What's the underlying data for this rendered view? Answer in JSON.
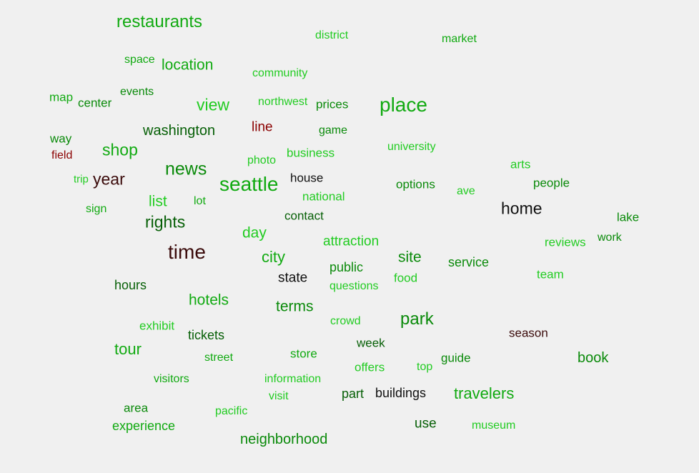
{
  "colors": {
    "background": "#f0f0f0",
    "bright_green": "#22cc22",
    "green": "#11aa11",
    "mid_green": "#0a8a0a",
    "dark_green": "#065f06",
    "dark_red": "#8b0000",
    "dark_brown": "#3a0a0a",
    "black": "#101010"
  },
  "words": [
    {
      "text": "restaurants",
      "color": "#11aa11"
    },
    {
      "text": "district",
      "color": "#22cc22"
    },
    {
      "text": "market",
      "color": "#11aa11"
    },
    {
      "text": "space",
      "color": "#11aa11"
    },
    {
      "text": "location",
      "color": "#11aa11"
    },
    {
      "text": "community",
      "color": "#22cc22"
    },
    {
      "text": "map",
      "color": "#11aa11"
    },
    {
      "text": "center",
      "color": "#0a8a0a"
    },
    {
      "text": "events",
      "color": "#0a8a0a"
    },
    {
      "text": "view",
      "color": "#22cc22"
    },
    {
      "text": "northwest",
      "color": "#22cc22"
    },
    {
      "text": "prices",
      "color": "#0a8a0a"
    },
    {
      "text": "place",
      "color": "#11aa11"
    },
    {
      "text": "way",
      "color": "#0a8a0a"
    },
    {
      "text": "washington",
      "color": "#065f06"
    },
    {
      "text": "line",
      "color": "#8b0000"
    },
    {
      "text": "game",
      "color": "#0a8a0a"
    },
    {
      "text": "field",
      "color": "#8b0000"
    },
    {
      "text": "shop",
      "color": "#11aa11"
    },
    {
      "text": "business",
      "color": "#22cc22"
    },
    {
      "text": "university",
      "color": "#22cc22"
    },
    {
      "text": "photo",
      "color": "#22cc22"
    },
    {
      "text": "arts",
      "color": "#22cc22"
    },
    {
      "text": "trip",
      "color": "#22cc22"
    },
    {
      "text": "year",
      "color": "#3a0a0a"
    },
    {
      "text": "news",
      "color": "#0a8a0a"
    },
    {
      "text": "seattle",
      "color": "#11aa11"
    },
    {
      "text": "house",
      "color": "#101010"
    },
    {
      "text": "options",
      "color": "#0a8a0a"
    },
    {
      "text": "people",
      "color": "#0a8a0a"
    },
    {
      "text": "ave",
      "color": "#22cc22"
    },
    {
      "text": "list",
      "color": "#22cc22"
    },
    {
      "text": "lot",
      "color": "#11aa11"
    },
    {
      "text": "national",
      "color": "#22cc22"
    },
    {
      "text": "sign",
      "color": "#11aa11"
    },
    {
      "text": "home",
      "color": "#101010"
    },
    {
      "text": "contact",
      "color": "#065f06"
    },
    {
      "text": "lake",
      "color": "#0a8a0a"
    },
    {
      "text": "rights",
      "color": "#065f06"
    },
    {
      "text": "day",
      "color": "#22cc22"
    },
    {
      "text": "work",
      "color": "#0a8a0a"
    },
    {
      "text": "attraction",
      "color": "#22cc22"
    },
    {
      "text": "reviews",
      "color": "#22cc22"
    },
    {
      "text": "time",
      "color": "#3a0a0a"
    },
    {
      "text": "city",
      "color": "#11aa11"
    },
    {
      "text": "site",
      "color": "#0a8a0a"
    },
    {
      "text": "service",
      "color": "#0a8a0a"
    },
    {
      "text": "public",
      "color": "#0a8a0a"
    },
    {
      "text": "team",
      "color": "#22cc22"
    },
    {
      "text": "state",
      "color": "#101010"
    },
    {
      "text": "food",
      "color": "#22cc22"
    },
    {
      "text": "hours",
      "color": "#065f06"
    },
    {
      "text": "questions",
      "color": "#22cc22"
    },
    {
      "text": "hotels",
      "color": "#11aa11"
    },
    {
      "text": "terms",
      "color": "#0a8a0a"
    },
    {
      "text": "park",
      "color": "#0a8a0a"
    },
    {
      "text": "crowd",
      "color": "#22cc22"
    },
    {
      "text": "exhibit",
      "color": "#22cc22"
    },
    {
      "text": "season",
      "color": "#3a0a0a"
    },
    {
      "text": "tickets",
      "color": "#065f06"
    },
    {
      "text": "week",
      "color": "#065f06"
    },
    {
      "text": "tour",
      "color": "#11aa11"
    },
    {
      "text": "street",
      "color": "#11aa11"
    },
    {
      "text": "store",
      "color": "#11aa11"
    },
    {
      "text": "guide",
      "color": "#0a8a0a"
    },
    {
      "text": "book",
      "color": "#0a8a0a"
    },
    {
      "text": "offers",
      "color": "#22cc22"
    },
    {
      "text": "top",
      "color": "#22cc22"
    },
    {
      "text": "visitors",
      "color": "#11aa11"
    },
    {
      "text": "information",
      "color": "#22cc22"
    },
    {
      "text": "part",
      "color": "#065f06"
    },
    {
      "text": "buildings",
      "color": "#101010"
    },
    {
      "text": "travelers",
      "color": "#11aa11"
    },
    {
      "text": "visit",
      "color": "#22cc22"
    },
    {
      "text": "area",
      "color": "#0a8a0a"
    },
    {
      "text": "pacific",
      "color": "#22cc22"
    },
    {
      "text": "experience",
      "color": "#11aa11"
    },
    {
      "text": "use",
      "color": "#065f06"
    },
    {
      "text": "museum",
      "color": "#22cc22"
    },
    {
      "text": "neighborhood",
      "color": "#0a8a0a"
    }
  ]
}
